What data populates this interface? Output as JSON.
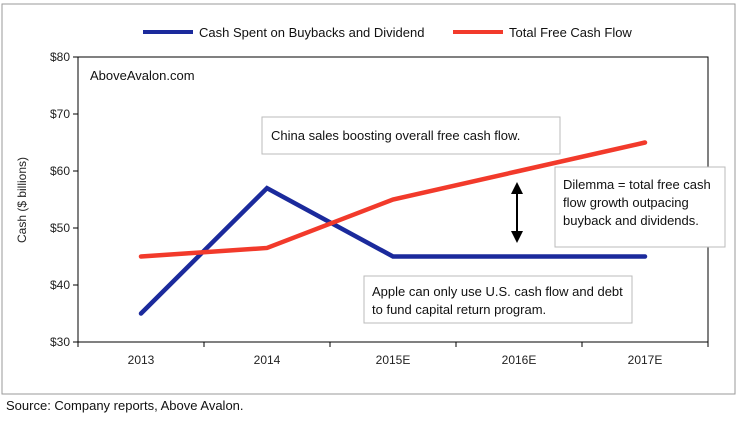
{
  "chart_data": {
    "type": "line",
    "categories": [
      "2013",
      "2014",
      "2015E",
      "2016E",
      "2017E"
    ],
    "series": [
      {
        "name": "Cash Spent on Buybacks and Dividend",
        "values": [
          35,
          57,
          45,
          45,
          45
        ]
      },
      {
        "name": "Total Free Cash Flow",
        "values": [
          45,
          46.5,
          55,
          60,
          65
        ]
      }
    ],
    "ylabel": "Cash ($ billions)",
    "ylim": [
      30,
      80
    ],
    "yticks": [
      "$30",
      "$40",
      "$50",
      "$60",
      "$70",
      "$80"
    ],
    "grid": false,
    "legend": "top",
    "colors": {
      "series_0": "#1b2a9c",
      "series_1": "#f23a2b"
    },
    "watermark": "AboveAvalon.com",
    "annotations": {
      "china": "China sales boosting overall free cash flow.",
      "dilemma": [
        "Dilemma = total free cash",
        "flow growth outpacing",
        "buyback and dividends."
      ],
      "apple": [
        "Apple can only use U.S. cash flow and debt",
        "to fund capital return program."
      ]
    }
  },
  "source": "Source: Company reports, Above Avalon."
}
